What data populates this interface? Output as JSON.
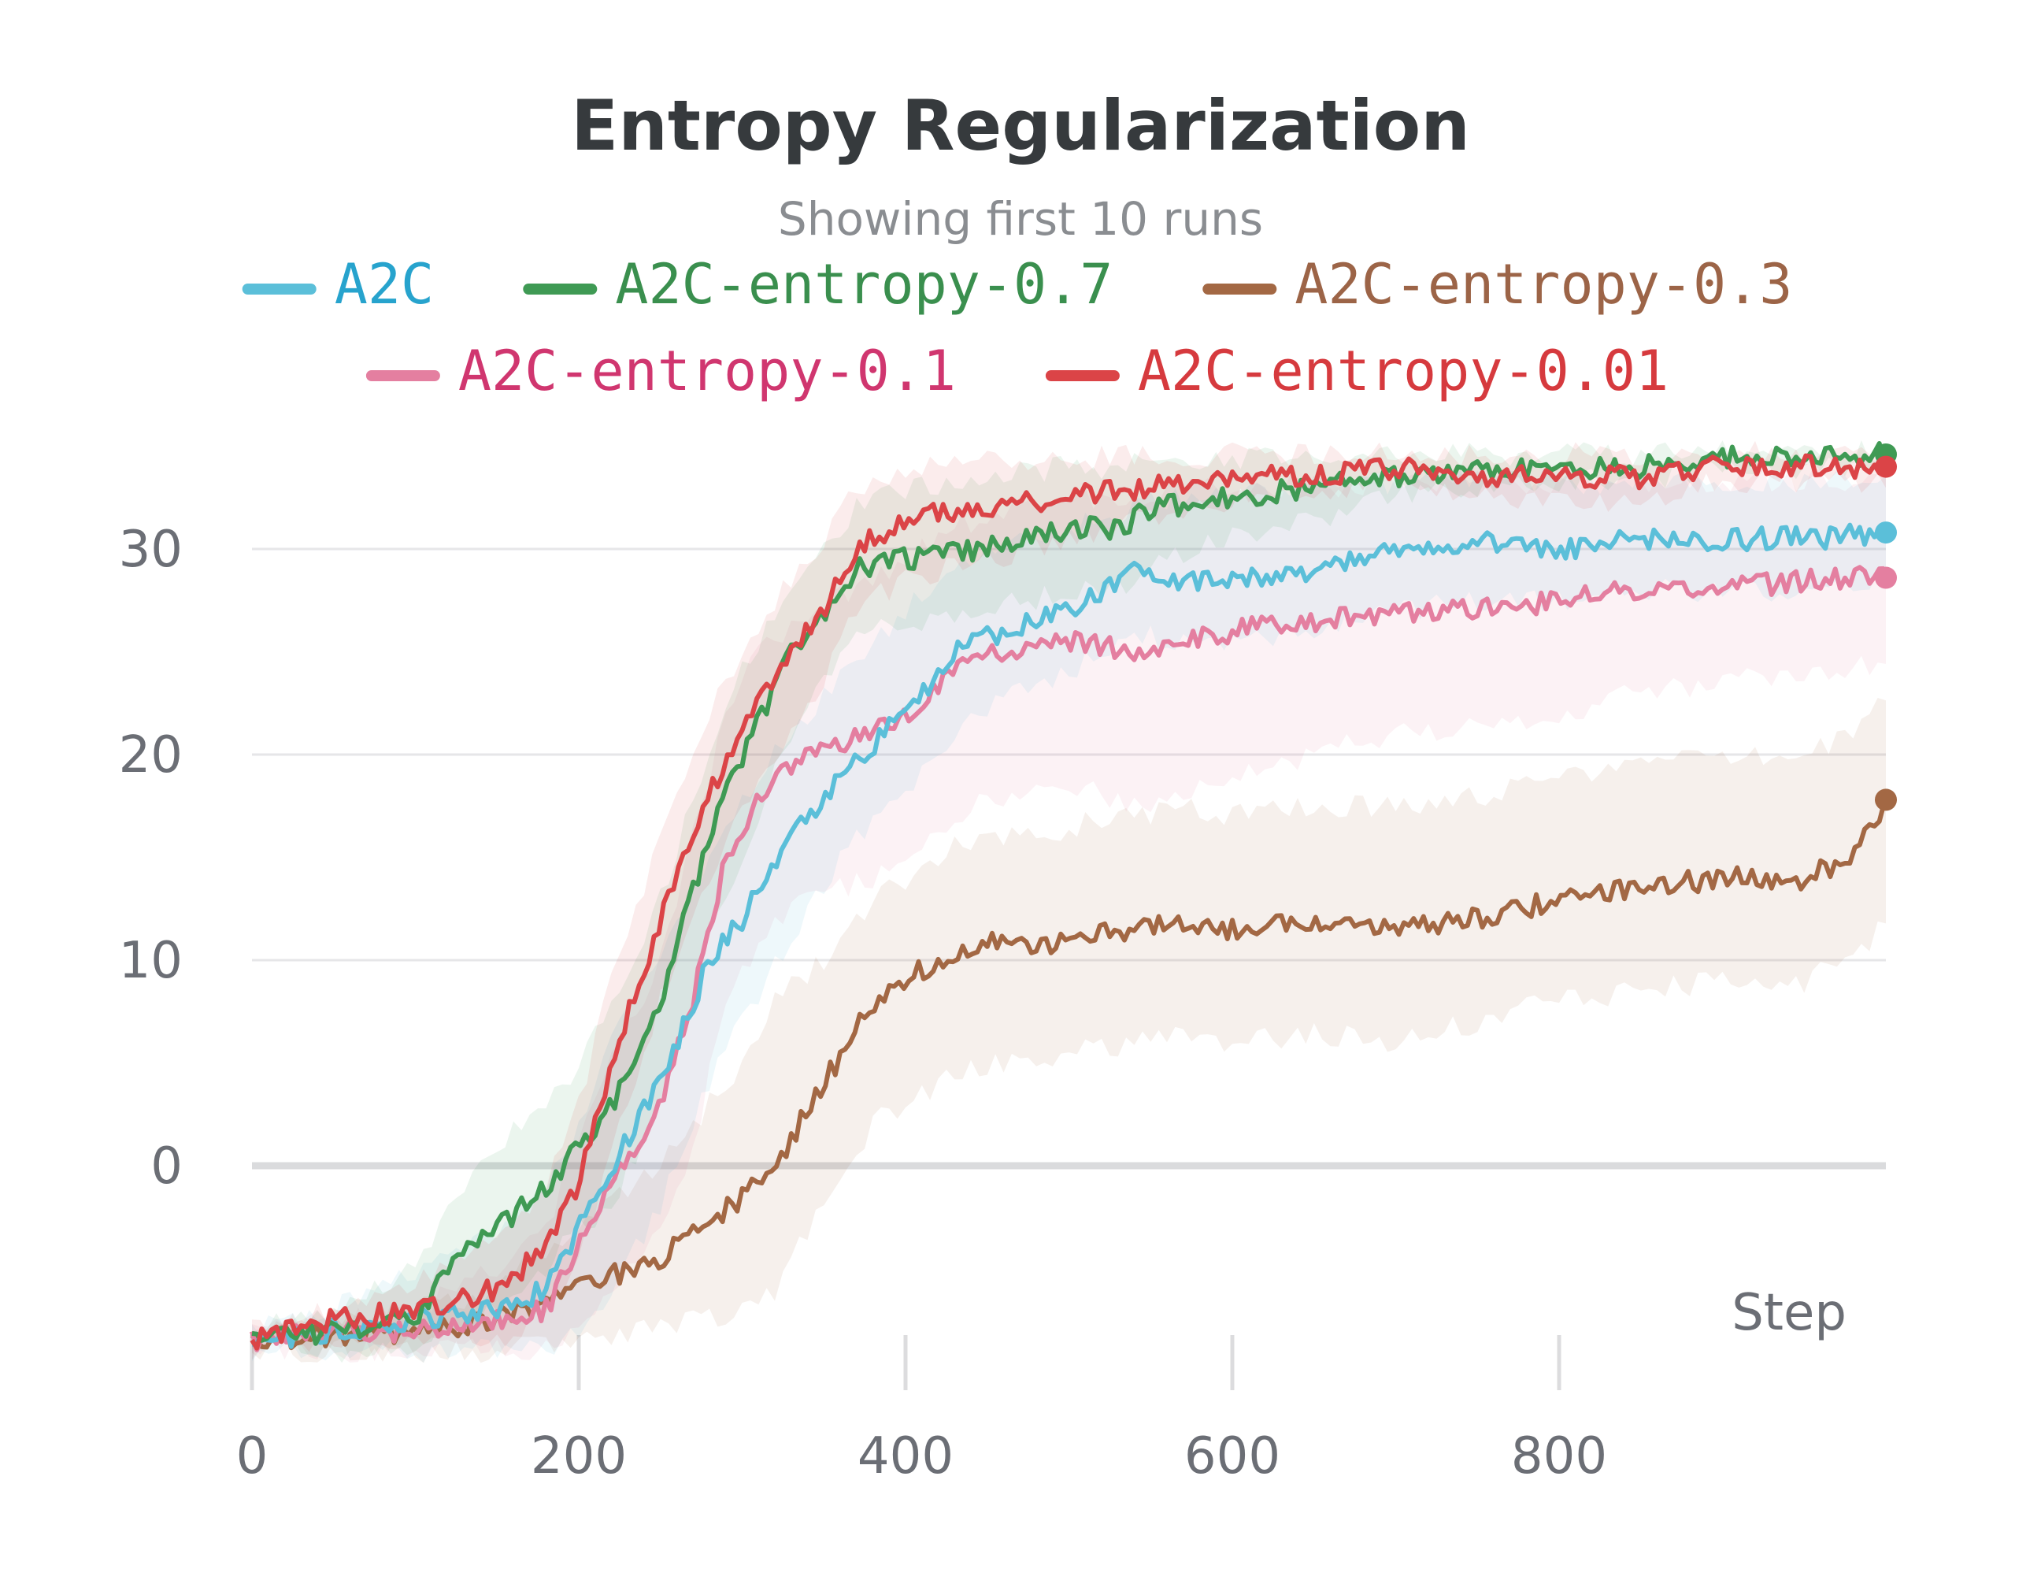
{
  "chart_data": {
    "type": "line",
    "title": "Entropy Regularization",
    "subtitle": "Showing first 10 runs",
    "xlabel": "Step",
    "ylabel": "",
    "xlim": [
      0,
      1000
    ],
    "ylim": [
      -11,
      34
    ],
    "xticks": [
      0,
      200,
      400,
      600,
      800
    ],
    "yticks": [
      0,
      10,
      20,
      30
    ],
    "grid": true,
    "legend_placement": "top",
    "series": [
      {
        "name": "A2C",
        "color": "#5bbfd9",
        "text_color": "#27a3cd",
        "x": [
          0,
          50,
          100,
          150,
          180,
          200,
          220,
          250,
          280,
          300,
          330,
          360,
          400,
          430,
          460,
          500,
          540,
          560,
          600,
          650,
          700,
          750,
          800,
          850,
          900,
          950,
          1000
        ],
        "values": [
          -8.5,
          -8,
          -7.5,
          -7,
          -6,
          -3,
          0,
          4,
          10,
          12,
          16,
          19,
          22,
          25,
          26,
          27,
          29,
          28.5,
          28.5,
          29,
          30,
          30.5,
          30,
          30.5,
          30.5,
          30.5,
          30.8
        ],
        "band_upper": [
          -8,
          -7,
          -5,
          -3,
          -1,
          2,
          6,
          10,
          15,
          18,
          21,
          24,
          27,
          29,
          30,
          31,
          32,
          32.5,
          32.5,
          33,
          33.2,
          33.4,
          33.2,
          33.3,
          33.3,
          33.3,
          33.4
        ],
        "band_lower": [
          -9,
          -9,
          -9,
          -9,
          -9,
          -8,
          -6,
          -2,
          4,
          7,
          11,
          15,
          18,
          21,
          23,
          24,
          26,
          25.5,
          25.5,
          26,
          27,
          27.5,
          27.5,
          28,
          28,
          28,
          28.5
        ]
      },
      {
        "name": "A2C-entropy-0.7",
        "color": "#3f9a54",
        "text_color": "#3a8f4e",
        "x": [
          0,
          50,
          100,
          120,
          150,
          180,
          200,
          220,
          250,
          280,
          300,
          330,
          370,
          400,
          450,
          500,
          530,
          550,
          600,
          650,
          700,
          750,
          800,
          850,
          900,
          950,
          1000
        ],
        "values": [
          -8.5,
          -8,
          -7.5,
          -5,
          -3,
          -1,
          1,
          3,
          8,
          16,
          20,
          25,
          29,
          29.5,
          30,
          31,
          31,
          32,
          32.5,
          33,
          33.5,
          33.8,
          34,
          34,
          34.5,
          34.5,
          34.6
        ],
        "band_upper": [
          -8,
          -7,
          -5,
          -2,
          1,
          3,
          5,
          8,
          13,
          20,
          24,
          28,
          32,
          33,
          33.5,
          34,
          34,
          34.2,
          34.3,
          34.4,
          34.5,
          34.6,
          34.6,
          34.6,
          34.7,
          34.7,
          34.7
        ],
        "band_lower": [
          -9,
          -9,
          -9,
          -8,
          -7,
          -5,
          -3,
          -2,
          3,
          11,
          15,
          21,
          26,
          26.5,
          27,
          28,
          28,
          29.5,
          30.5,
          31.5,
          32.5,
          33,
          33.3,
          33.4,
          33.9,
          34,
          34.2
        ]
      },
      {
        "name": "A2C-entropy-0.3",
        "color": "#a36844",
        "text_color": "#9c6447",
        "x": [
          0,
          50,
          100,
          150,
          200,
          250,
          300,
          320,
          350,
          380,
          400,
          430,
          460,
          480,
          500,
          540,
          570,
          600,
          650,
          700,
          750,
          800,
          850,
          900,
          950,
          980,
          1000
        ],
        "values": [
          -8.5,
          -8.3,
          -8,
          -7.5,
          -6,
          -4.5,
          -1.5,
          0,
          4,
          8,
          9,
          10.5,
          11,
          10.5,
          11,
          11.5,
          12,
          11.5,
          12,
          11.5,
          12,
          13,
          13.5,
          14,
          14,
          15,
          17.8
        ],
        "band_upper": [
          -8,
          -7.5,
          -7,
          -6,
          -3,
          0,
          5,
          8,
          10,
          13,
          14,
          15.5,
          16,
          16,
          16.5,
          17,
          17.5,
          17,
          17.5,
          17.5,
          18,
          19,
          19.5,
          20,
          20,
          21,
          23
        ],
        "band_lower": [
          -9,
          -9,
          -9,
          -9,
          -8.5,
          -8,
          -7,
          -6,
          -2,
          2,
          3,
          4.5,
          5,
          5,
          5.5,
          6,
          6.5,
          6,
          6.5,
          6,
          7,
          8,
          8.5,
          9,
          9,
          10,
          12
        ]
      },
      {
        "name": "A2C-entropy-0.1",
        "color": "#e47fa0",
        "text_color": "#d0366f",
        "x": [
          0,
          50,
          100,
          150,
          180,
          200,
          220,
          250,
          270,
          290,
          310,
          340,
          380,
          400,
          430,
          460,
          500,
          540,
          570,
          600,
          650,
          700,
          750,
          800,
          850,
          900,
          950,
          1000
        ],
        "values": [
          -8.5,
          -8,
          -8,
          -7.5,
          -7,
          -4,
          -1,
          3,
          8,
          15,
          18,
          20,
          21,
          22,
          24,
          25,
          25.5,
          25,
          25.5,
          26,
          26.5,
          27,
          27,
          27.5,
          28,
          28,
          28.5,
          28.6
        ],
        "band_upper": [
          -8,
          -7.5,
          -7,
          -5,
          -3,
          1,
          5,
          10,
          16,
          22,
          25,
          27,
          28.5,
          29.5,
          31,
          32,
          32.5,
          32.5,
          33,
          33,
          33,
          33.2,
          33.2,
          33.3,
          33.3,
          33.3,
          33.4,
          33.4
        ],
        "band_lower": [
          -9,
          -9,
          -9,
          -9,
          -9,
          -8,
          -6,
          -3,
          1,
          8,
          11,
          13,
          14,
          15,
          17,
          18,
          18.5,
          17.5,
          18,
          19,
          20,
          21,
          21.5,
          22,
          23,
          23.5,
          24,
          24.5
        ]
      },
      {
        "name": "A2C-entropy-0.01",
        "color": "#db4447",
        "text_color": "#d63a3e",
        "x": [
          0,
          50,
          100,
          150,
          180,
          200,
          220,
          250,
          280,
          300,
          330,
          350,
          370,
          400,
          450,
          500,
          550,
          600,
          650,
          700,
          750,
          800,
          850,
          900,
          950,
          1000
        ],
        "values": [
          -8.5,
          -7.5,
          -7,
          -6,
          -4,
          -1,
          5,
          12,
          18,
          21,
          25,
          27,
          30,
          31.5,
          32,
          32.5,
          33,
          33.5,
          33.5,
          34,
          33.5,
          33.5,
          33.5,
          34,
          34,
          34
        ],
        "band_upper": [
          -8,
          -7,
          -5.5,
          -3.5,
          -1,
          3,
          9,
          16,
          22,
          25,
          28.5,
          30.5,
          33,
          34,
          34.2,
          34.4,
          34.5,
          34.6,
          34.6,
          34.6,
          34.6,
          34.6,
          34.6,
          34.7,
          34.7,
          34.7
        ],
        "band_lower": [
          -9,
          -8.5,
          -8.5,
          -8.5,
          -7,
          -5,
          1,
          8,
          14,
          17,
          21,
          23.5,
          27,
          28.5,
          29.5,
          30.5,
          31.5,
          32.4,
          32.4,
          33.4,
          32.4,
          32.4,
          32.4,
          33.3,
          33.3,
          33.3
        ]
      }
    ]
  }
}
